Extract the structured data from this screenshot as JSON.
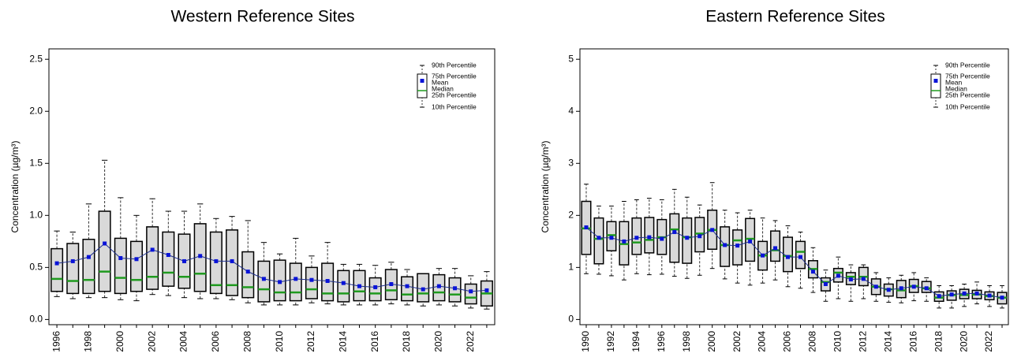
{
  "chart_data": [
    {
      "type": "boxplot",
      "title": "Western Reference Sites",
      "y_label": "Concentration (µg/m³)",
      "categories": [
        "1996",
        null,
        "1998",
        null,
        "2000",
        null,
        "2002",
        null,
        "2004",
        null,
        "2006",
        null,
        "2008",
        null,
        "2010",
        null,
        "2012",
        null,
        "2014",
        null,
        "2016",
        null,
        "2018",
        null,
        "2020",
        null,
        "2022",
        null
      ],
      "p10": [
        0.22,
        0.2,
        0.21,
        0.21,
        0.19,
        0.18,
        0.24,
        0.23,
        0.21,
        0.2,
        0.2,
        0.19,
        0.16,
        0.14,
        0.14,
        0.14,
        0.16,
        0.15,
        0.14,
        0.14,
        0.14,
        0.15,
        0.14,
        0.13,
        0.14,
        0.13,
        0.11,
        0.1
      ],
      "p25": [
        0.27,
        0.25,
        0.25,
        0.27,
        0.25,
        0.27,
        0.29,
        0.32,
        0.3,
        0.27,
        0.25,
        0.23,
        0.21,
        0.17,
        0.18,
        0.18,
        0.2,
        0.18,
        0.17,
        0.18,
        0.18,
        0.19,
        0.18,
        0.17,
        0.18,
        0.17,
        0.15,
        0.13
      ],
      "median": [
        0.39,
        0.37,
        0.38,
        0.46,
        0.4,
        0.38,
        0.41,
        0.45,
        0.41,
        0.44,
        0.33,
        0.33,
        0.31,
        0.29,
        0.26,
        0.26,
        0.29,
        0.25,
        0.25,
        0.27,
        0.25,
        0.28,
        0.24,
        0.25,
        0.26,
        0.24,
        0.21,
        0.25
      ],
      "p75": [
        0.68,
        0.73,
        0.77,
        1.04,
        0.78,
        0.75,
        0.89,
        0.84,
        0.82,
        0.92,
        0.84,
        0.86,
        0.65,
        0.56,
        0.57,
        0.54,
        0.5,
        0.54,
        0.47,
        0.47,
        0.4,
        0.48,
        0.41,
        0.44,
        0.43,
        0.4,
        0.34,
        0.37
      ],
      "p90": [
        0.85,
        0.84,
        1.11,
        1.53,
        1.17,
        1.0,
        1.16,
        1.04,
        1.04,
        1.11,
        0.97,
        0.99,
        0.95,
        0.74,
        0.63,
        0.78,
        0.61,
        0.74,
        0.53,
        0.53,
        0.52,
        0.55,
        0.48,
        0.44,
        0.49,
        0.49,
        0.42,
        0.46
      ],
      "mean": [
        0.54,
        0.56,
        0.6,
        0.73,
        0.59,
        0.58,
        0.67,
        0.62,
        0.56,
        0.61,
        0.56,
        0.56,
        0.46,
        0.39,
        0.36,
        0.39,
        0.38,
        0.37,
        0.35,
        0.32,
        0.31,
        0.34,
        0.32,
        0.29,
        0.32,
        0.3,
        0.27,
        0.28
      ],
      "ylim": [
        -0.05,
        2.6
      ],
      "yticks": [
        {
          "value": 0,
          "label": "0.0"
        },
        0.5,
        {
          "value": 1,
          "label": "1.0"
        },
        1.5,
        {
          "value": 2,
          "label": "2.0"
        },
        2.5
      ],
      "box_color": "#d9d9d9",
      "median_color": "#1f9a1f",
      "mean_color": "#0a14d8",
      "mean_line_color": "#1f2f8a",
      "legend": {
        "p90": "90th Percentile",
        "p75": "75th Percentile",
        "mean": "Mean",
        "median": "Median",
        "p25": "25th Percentile",
        "p10": "10th Percentile"
      }
    },
    {
      "type": "boxplot",
      "title": "Eastern Reference Sites",
      "y_label": "Concentration (µg/m³)",
      "categories": [
        "1990",
        null,
        "1992",
        null,
        "1994",
        null,
        "1996",
        null,
        "1998",
        null,
        "2000",
        null,
        "2002",
        null,
        "2004",
        null,
        "2006",
        null,
        "2008",
        null,
        "2010",
        null,
        "2012",
        null,
        "2014",
        null,
        "2016",
        null,
        "2018",
        null,
        "2020",
        null,
        "2022",
        null
      ],
      "p10": [
        0.88,
        0.87,
        0.84,
        0.76,
        0.88,
        0.86,
        0.87,
        0.83,
        0.79,
        0.85,
        0.98,
        0.78,
        0.7,
        0.66,
        0.7,
        0.76,
        0.63,
        0.6,
        0.52,
        0.35,
        0.4,
        0.35,
        0.4,
        0.35,
        0.33,
        0.32,
        0.36,
        0.35,
        0.22,
        0.22,
        0.25,
        0.3,
        0.25,
        0.22
      ],
      "p25": [
        1.25,
        1.07,
        1.32,
        1.05,
        1.25,
        1.28,
        1.25,
        1.1,
        1.08,
        1.3,
        1.35,
        1.02,
        1.05,
        1.12,
        0.95,
        1.12,
        0.92,
        0.98,
        0.8,
        0.55,
        0.72,
        0.67,
        0.65,
        0.48,
        0.45,
        0.42,
        0.52,
        0.52,
        0.35,
        0.37,
        0.4,
        0.4,
        0.38,
        0.3
      ],
      "median": [
        1.75,
        1.55,
        1.62,
        1.45,
        1.48,
        1.53,
        1.58,
        1.73,
        1.58,
        1.65,
        1.72,
        1.43,
        1.52,
        1.55,
        1.23,
        1.33,
        1.22,
        1.3,
        0.97,
        0.72,
        0.9,
        0.82,
        0.82,
        0.63,
        0.58,
        0.56,
        0.64,
        0.6,
        0.42,
        0.47,
        0.47,
        0.48,
        0.45,
        0.42
      ],
      "p75": [
        2.27,
        1.95,
        1.88,
        1.88,
        1.95,
        1.96,
        1.92,
        2.03,
        1.95,
        1.96,
        2.1,
        1.78,
        1.72,
        1.94,
        1.5,
        1.7,
        1.58,
        1.5,
        1.13,
        0.8,
        0.98,
        0.9,
        1.0,
        0.78,
        0.68,
        0.75,
        0.77,
        0.73,
        0.53,
        0.55,
        0.58,
        0.56,
        0.53,
        0.52
      ],
      "p90": [
        2.6,
        2.18,
        2.18,
        2.27,
        2.3,
        2.33,
        2.3,
        2.5,
        2.35,
        2.2,
        2.63,
        2.1,
        2.05,
        2.1,
        1.95,
        1.9,
        1.8,
        1.68,
        1.38,
        0.95,
        1.2,
        1.05,
        1.05,
        0.9,
        0.8,
        0.85,
        0.9,
        0.8,
        0.65,
        0.65,
        0.68,
        0.72,
        0.65,
        0.65
      ],
      "mean": [
        1.77,
        1.57,
        1.57,
        1.5,
        1.57,
        1.58,
        1.55,
        1.68,
        1.57,
        1.6,
        1.72,
        1.43,
        1.42,
        1.5,
        1.23,
        1.37,
        1.2,
        1.2,
        0.92,
        0.68,
        0.84,
        0.77,
        0.78,
        0.63,
        0.57,
        0.6,
        0.63,
        0.6,
        0.45,
        0.48,
        0.5,
        0.5,
        0.46,
        0.42
      ],
      "ylim": [
        -0.1,
        5.2
      ],
      "yticks": [
        0,
        1,
        2,
        3,
        4,
        5
      ],
      "box_color": "#d9d9d9",
      "median_color": "#1f9a1f",
      "mean_color": "#0a14d8",
      "mean_line_color": "#1f2f8a",
      "legend": {
        "p90": "90th Percentile",
        "p75": "75th Percentile",
        "mean": "Mean",
        "median": "Median",
        "p25": "25th Percentile",
        "p10": "10th Percentile"
      }
    }
  ]
}
